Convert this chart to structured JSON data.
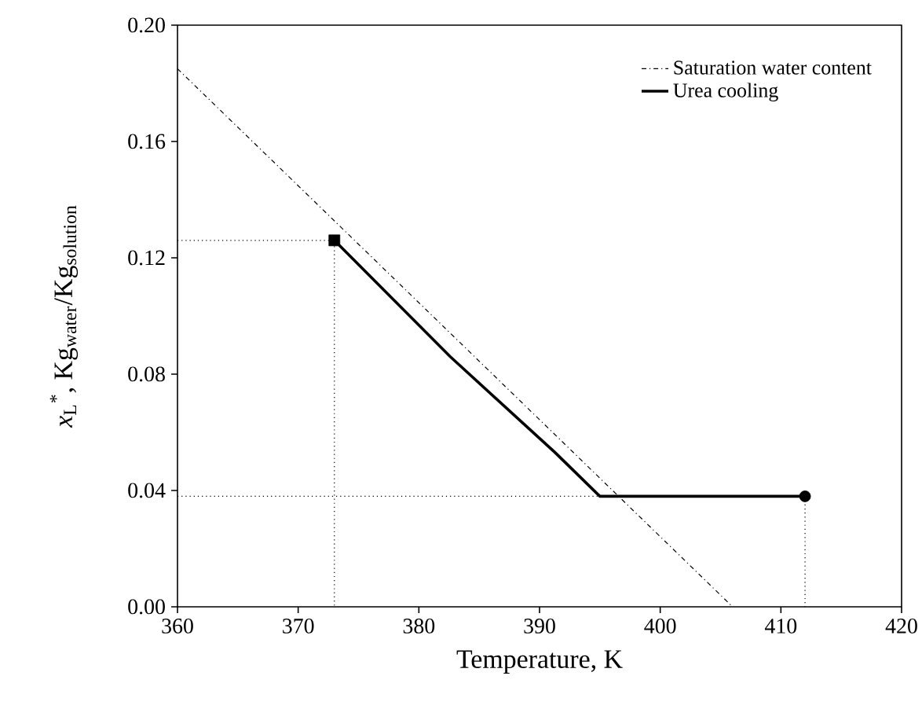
{
  "chart_data": {
    "type": "line",
    "xlabel": "Temperature, K",
    "ylabel": "*x*$_{L}$$^{*}$, Kg$_{water}$/Kg$_{solution}$",
    "xlim": [
      360,
      420
    ],
    "xticks": [
      360,
      370,
      380,
      390,
      400,
      410,
      420
    ],
    "ylim": [
      0,
      0.2
    ],
    "yticks": [
      {
        "value": 0,
        "label": "0.00"
      },
      0.04,
      0.08,
      0.12,
      0.16,
      {
        "value": 0.2,
        "label": "0.20"
      }
    ],
    "grid": false,
    "legend": "top right",
    "series": [
      {
        "name": "Saturation water content",
        "color": "#000000",
        "line_style": "dashdot",
        "marker": "none",
        "x": [
          360,
          406
        ],
        "values": [
          0.185,
          0
        ]
      },
      {
        "name": "Urea cooling",
        "color": "#000000",
        "line_style": "solid",
        "marker": "none",
        "x": [
          412,
          395,
          391.3,
          382.6,
          373
        ],
        "values": [
          0.038,
          0.038,
          0.053,
          0.086,
          0.126
        ]
      },
      {
        "type": "line",
        "color": "#000000",
        "line_style": "dotted",
        "marker": "none",
        "x": [
          360,
          373,
          373
        ],
        "values": [
          0.126,
          0.126,
          0
        ]
      },
      {
        "type": "line",
        "color": "#000000",
        "line_style": "dotted",
        "marker": "none",
        "x": [
          360,
          395
        ],
        "values": [
          0.038,
          0.038
        ]
      },
      {
        "type": "line",
        "color": "#000000",
        "line_style": "dotted",
        "marker": "none",
        "x": [
          412,
          412
        ],
        "values": [
          0.038,
          0
        ]
      },
      {
        "type": "scatter",
        "color": "#000000",
        "marker": "circle",
        "x": [
          412
        ],
        "values": [
          0.038
        ]
      },
      {
        "type": "scatter",
        "color": "#000000",
        "marker": "square",
        "x": [
          373
        ],
        "values": [
          0.126
        ]
      }
    ]
  }
}
